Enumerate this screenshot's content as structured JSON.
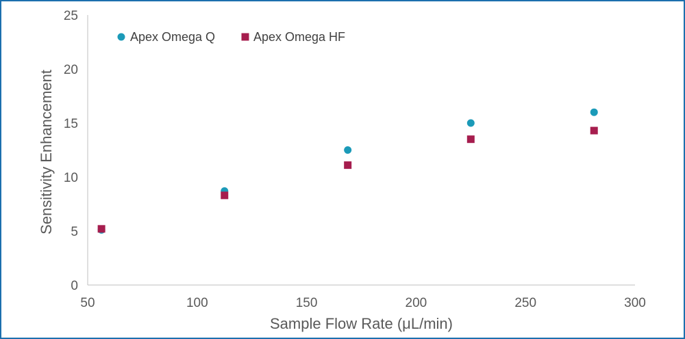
{
  "chart_data": {
    "type": "scatter",
    "xlabel": "Sample Flow Rate (μL/min)",
    "ylabel": "Sensitivity Enhancement",
    "xlim": [
      50,
      300
    ],
    "ylim": [
      0,
      25
    ],
    "xticks": [
      50,
      100,
      150,
      200,
      250,
      300
    ],
    "yticks": [
      0,
      5,
      10,
      15,
      20,
      25
    ],
    "grid": false,
    "legend_position": "top-left",
    "series": [
      {
        "name": "Apex Omega Q",
        "marker": "circle",
        "color": "#1b9ab8",
        "x": [
          56.3,
          112.5,
          168.8,
          225,
          281.3
        ],
        "y": [
          5.1,
          8.7,
          12.5,
          15.0,
          16.0
        ]
      },
      {
        "name": "Apex Omega HF",
        "marker": "square",
        "color": "#a61d4e",
        "x": [
          56.3,
          112.5,
          168.8,
          225,
          281.3
        ],
        "y": [
          5.2,
          8.3,
          11.1,
          13.5,
          14.3
        ]
      }
    ]
  }
}
